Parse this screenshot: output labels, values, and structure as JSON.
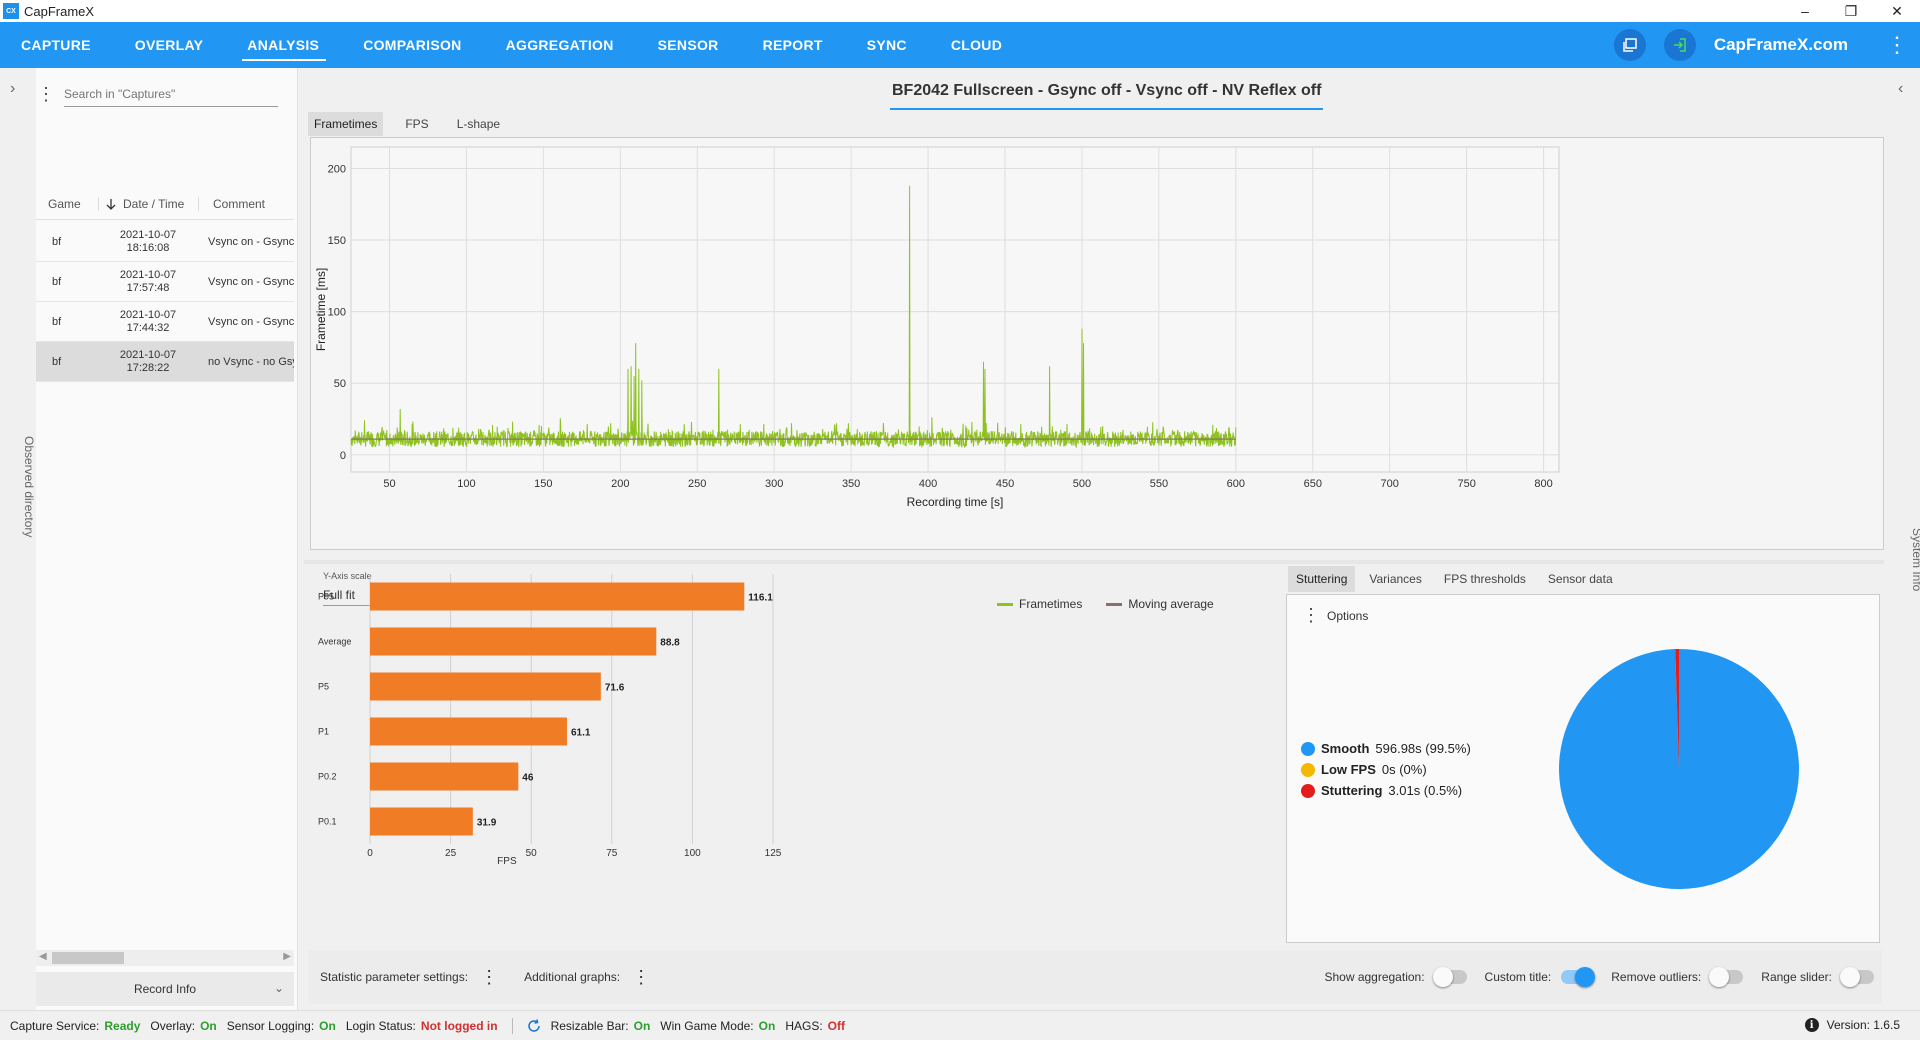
{
  "window": {
    "title": "CapFrameX",
    "icon_text": "CX",
    "controls": [
      "–",
      "❐",
      "✕"
    ]
  },
  "nav": {
    "tabs": [
      {
        "label": "CAPTURE"
      },
      {
        "label": "OVERLAY"
      },
      {
        "label": "ANALYSIS",
        "active": true
      },
      {
        "label": "COMPARISON"
      },
      {
        "label": "AGGREGATION"
      },
      {
        "label": "SENSOR"
      },
      {
        "label": "REPORT"
      },
      {
        "label": "SYNC"
      },
      {
        "label": "CLOUD"
      }
    ],
    "site": "CapFrameX.com",
    "color": "#2196f3"
  },
  "left_rail": {
    "label": "Observed directory",
    "chevron": "›"
  },
  "right_rail": {
    "label": "System Info",
    "chevron": "‹"
  },
  "captures": {
    "search_placeholder": "Search in \"Captures\"",
    "columns": {
      "game": "Game",
      "date": "Date / Time",
      "comment": "Comment"
    },
    "rows": [
      {
        "game": "bf",
        "date": "2021-10-07",
        "time": "18:16:08",
        "comment": "Vsync on - Gsync"
      },
      {
        "game": "bf",
        "date": "2021-10-07",
        "time": "17:57:48",
        "comment": "Vsync on - Gsync"
      },
      {
        "game": "bf",
        "date": "2021-10-07",
        "time": "17:44:32",
        "comment": "Vsync on - Gsync"
      },
      {
        "game": "bf",
        "date": "2021-10-07",
        "time": "17:28:22",
        "comment": "no Vsync - no Gsync",
        "selected": true
      }
    ],
    "record_info": "Record Info"
  },
  "main": {
    "chart_title": "BF2042 Fullscreen - Gsync off - Vsync off - NV Reflex off",
    "chart_tabs": [
      {
        "label": "Frametimes",
        "active": true
      },
      {
        "label": "FPS"
      },
      {
        "label": "L-shape"
      }
    ],
    "y_axis_scale": {
      "label": "Y-Axis scale",
      "value": "Full fit"
    }
  },
  "chart_data": [
    {
      "type": "line",
      "xlabel": "Recording time [s]",
      "ylabel": "Frametime [ms]",
      "xlim": [
        25,
        810
      ],
      "ylim": [
        -12,
        215
      ],
      "xticks": [
        50,
        100,
        150,
        200,
        250,
        300,
        350,
        400,
        450,
        500,
        550,
        600,
        650,
        700,
        750,
        800
      ],
      "yticks": [
        0,
        50,
        100,
        150,
        200
      ],
      "grid": true,
      "legend": "bottom-center",
      "series": [
        {
          "name": "Frametimes",
          "color": "#8dc21f",
          "baseline_ms": 11,
          "x_range": [
            25,
            600
          ],
          "spikes": [
            [
              57,
              32
            ],
            [
              205,
              60
            ],
            [
              207,
              62
            ],
            [
              209,
              55
            ],
            [
              210,
              78
            ],
            [
              212,
              60
            ],
            [
              214,
              52
            ],
            [
              264,
              60
            ],
            [
              388,
              188
            ],
            [
              436,
              65
            ],
            [
              437,
              60
            ],
            [
              479,
              62
            ],
            [
              500,
              88
            ],
            [
              501,
              78
            ]
          ]
        },
        {
          "name": "Moving average",
          "color": "#8d6e63"
        }
      ]
    },
    {
      "type": "bar",
      "orientation": "horizontal",
      "categories": [
        "P95",
        "Average",
        "P5",
        "P1",
        "P0.2",
        "P0.1"
      ],
      "values": [
        116.1,
        88.8,
        71.6,
        61.1,
        46,
        31.9
      ],
      "xlabel": "FPS",
      "xlim": [
        0,
        125
      ],
      "xticks": [
        0,
        25,
        50,
        75,
        100,
        125
      ],
      "color": "#f07d26"
    },
    {
      "type": "pie",
      "labels": [
        "Smooth",
        "Low FPS",
        "Stuttering"
      ],
      "values": [
        596.98,
        0,
        3.01
      ],
      "value_text": [
        "596.98s (99.5%)",
        "0s (0%)",
        "3.01s (0.5%)"
      ],
      "percent": [
        99.5,
        0,
        0.5
      ],
      "colors": [
        "#2196f3",
        "#f5b800",
        "#e51c1c"
      ]
    }
  ],
  "right_tabs": [
    {
      "label": "Stuttering",
      "active": true
    },
    {
      "label": "Variances"
    },
    {
      "label": "FPS thresholds"
    },
    {
      "label": "Sensor data"
    }
  ],
  "options_label": "Options",
  "bottom_bar": {
    "statistic_settings": "Statistic parameter settings:",
    "additional_graphs": "Additional graphs:",
    "toggles": [
      {
        "label": "Show aggregation:",
        "on": false
      },
      {
        "label": "Custom title:",
        "on": true
      },
      {
        "label": "Remove outliers:",
        "on": false
      },
      {
        "label": "Range slider:",
        "on": false
      }
    ]
  },
  "status": {
    "items": [
      {
        "label": "Capture Service:",
        "value": "Ready",
        "color": "#2e9e2e"
      },
      {
        "label": "Overlay:",
        "value": "On",
        "color": "#2e9e2e"
      },
      {
        "label": "Sensor Logging:",
        "value": "On",
        "color": "#2e9e2e"
      },
      {
        "label": "Login Status:",
        "value": "Not logged in",
        "color": "#d32f2f"
      }
    ],
    "items2": [
      {
        "label": "Resizable Bar:",
        "value": "On",
        "color": "#2e9e2e"
      },
      {
        "label": "Win Game Mode:",
        "value": "On",
        "color": "#2e9e2e"
      },
      {
        "label": "HAGS:",
        "value": "Off",
        "color": "#d32f2f"
      }
    ],
    "version": "Version:  1.6.5"
  }
}
